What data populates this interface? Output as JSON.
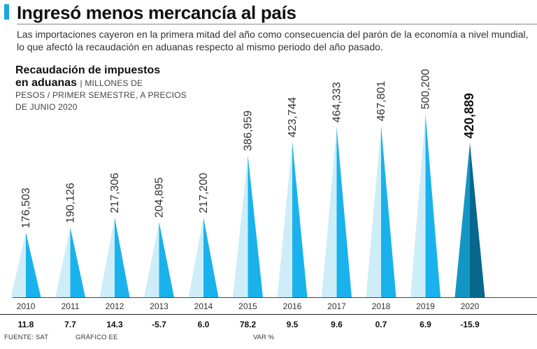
{
  "header": {
    "title": "Ingresó menos mercancía al país",
    "subtitle": "Las importaciones cayeron en la primera mitad del año como consecuencia del parón de la economía a nivel mundial, lo que afectó la recaudación en aduanas respecto al mismo periodo del año pasado."
  },
  "chart_data": {
    "type": "bar",
    "title_line1": "Recaudación de impuestos",
    "title_line2": "en aduanas",
    "units_line1": "| MILLONES DE",
    "units_line2": "PESOS / PRIMER SEMESTRE,  A PRECIOS",
    "units_line3": "DE JUNIO 2020",
    "categories": [
      "2010",
      "2011",
      "2012",
      "2013",
      "2014",
      "2015",
      "2016",
      "2017",
      "2018",
      "2019",
      "2020"
    ],
    "values": [
      176503,
      190126,
      217306,
      204895,
      217200,
      386959,
      423744,
      464333,
      467801,
      500200,
      420889
    ],
    "value_labels": [
      "176,503",
      "190,126",
      "217,306",
      "204,895",
      "217,200",
      "386,959",
      "423,744",
      "464,333",
      "467,801",
      "500,200",
      "420,889"
    ],
    "var_pct": [
      "11.8",
      "7.7",
      "14.3",
      "-5.7",
      "6.0",
      "78.2",
      "9.5",
      "9.6",
      "0.7",
      "6.9",
      "-15.9"
    ],
    "var_label": "VAR %",
    "highlight_index": 10,
    "colors": {
      "light": "#cdeef9",
      "mid": "#1ab2ec",
      "dark": "#0a7ea8",
      "hl_light": "#1496c4",
      "hl_dark": "#08678d",
      "axis": "#444444"
    }
  },
  "footer": {
    "source": "FUENTE: SAT",
    "credit": "GRÁFICO EE"
  }
}
